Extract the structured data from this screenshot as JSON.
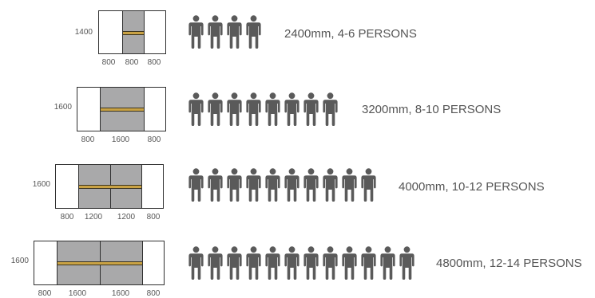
{
  "configurations": [
    {
      "caption": "2400mm, 4-6 PERSONS",
      "width_label": "1400",
      "segment_labels": [
        "800",
        "800",
        "800"
      ],
      "persons": 4
    },
    {
      "caption": "3200mm, 8-10 PERSONS",
      "width_label": "1600",
      "segment_labels": [
        "800",
        "1600",
        "800"
      ],
      "persons": 8
    },
    {
      "caption": "4000mm, 10-12 PERSONS",
      "width_label": "1600",
      "segment_labels": [
        "800",
        "1200",
        "1200",
        "800"
      ],
      "persons": 10
    },
    {
      "caption": "4800mm, 12-14 PERSONS",
      "width_label": "1600",
      "segment_labels": [
        "800",
        "1600",
        "1600",
        "800"
      ],
      "persons": 12
    }
  ],
  "colors": {
    "table_center": "#a9a9aa",
    "table_end": "#ffffff",
    "stripe": "#c9a244",
    "outline": "#2f2f2f",
    "person_icon": "#5a5a5a",
    "text": "#555555"
  },
  "icons": {
    "person": "person-icon"
  }
}
